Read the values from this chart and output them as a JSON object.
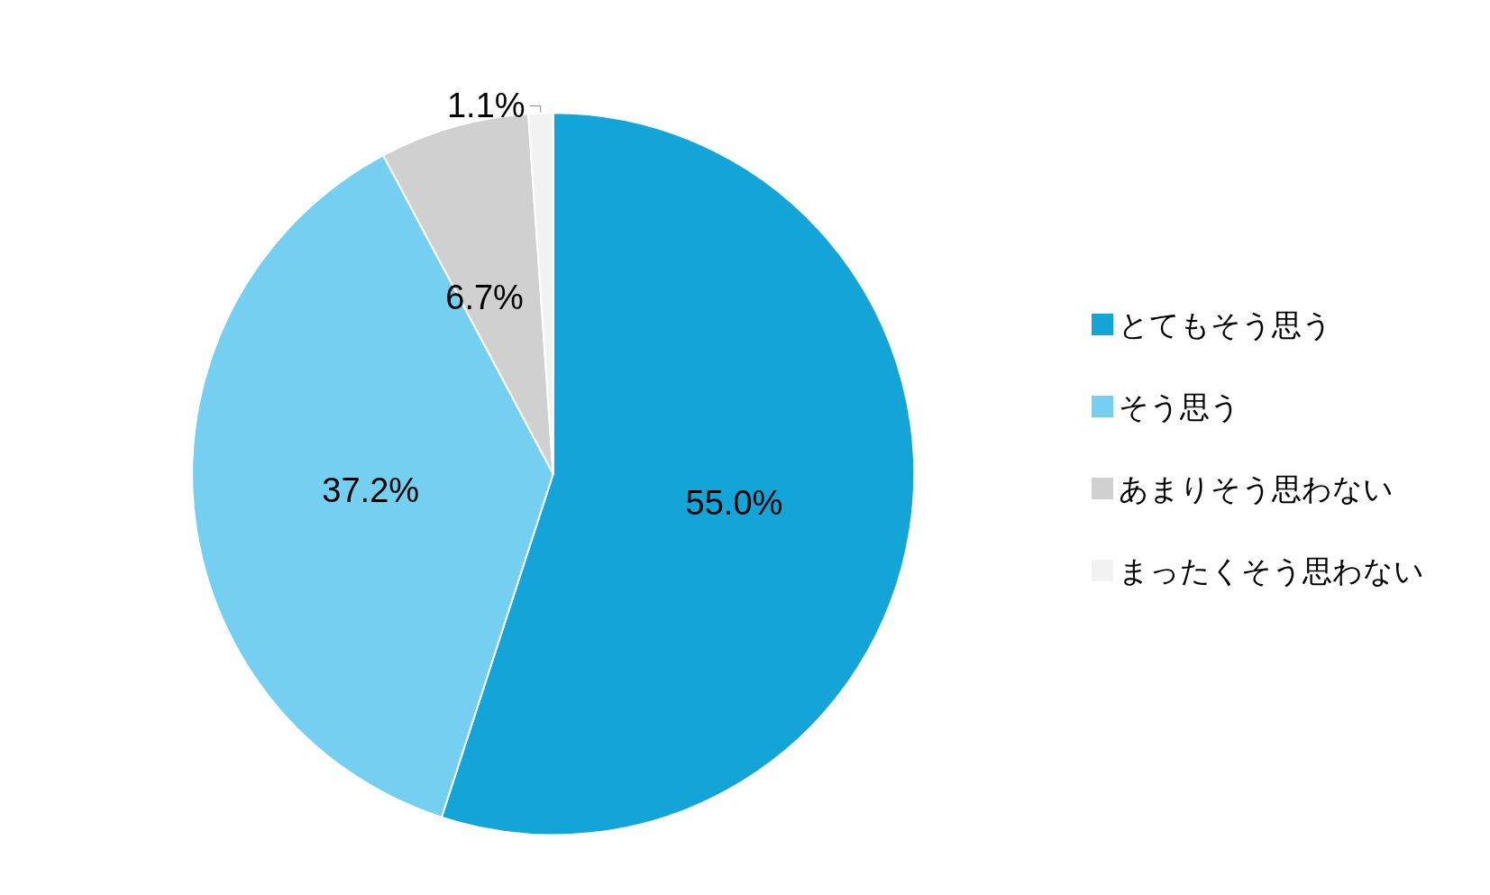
{
  "chart_data": {
    "type": "pie",
    "categories": [
      "とてもそう思う",
      "そう思う",
      "あまりそう思わない",
      "まったくそう思わない"
    ],
    "values": [
      55.0,
      37.2,
      6.7,
      1.1
    ],
    "colors": [
      "#14a5d8",
      "#75cff0",
      "#d0d0d0",
      "#f2f2f2"
    ],
    "value_labels": [
      "55.0%",
      "37.2%",
      "6.7%",
      "1.1%"
    ],
    "legend": "right"
  }
}
